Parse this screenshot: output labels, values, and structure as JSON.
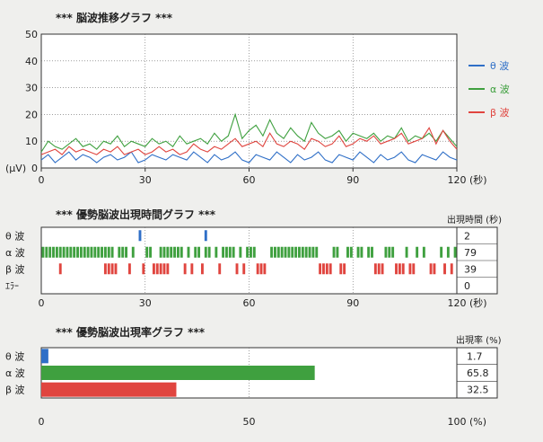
{
  "chart_data": [
    {
      "type": "line",
      "title": "*** 脳波推移グラフ ***",
      "ylabel": "(μV)",
      "xlabel_unit": "(秒)",
      "xlim": [
        0,
        120
      ],
      "ylim": [
        0,
        50
      ],
      "x_ticks": [
        0,
        30,
        60,
        90,
        120
      ],
      "y_ticks": [
        0,
        10,
        20,
        30,
        40,
        50
      ],
      "x_tick_labels": [
        "0",
        "30",
        "60",
        "90",
        "120"
      ],
      "y_tick_labels": [
        "0",
        "10",
        "20",
        "30",
        "40",
        "50"
      ],
      "grid": true,
      "legend_position": "right",
      "x": [
        0,
        2,
        4,
        6,
        8,
        10,
        12,
        14,
        16,
        18,
        20,
        22,
        24,
        26,
        28,
        30,
        32,
        34,
        36,
        38,
        40,
        42,
        44,
        46,
        48,
        50,
        52,
        54,
        56,
        58,
        60,
        62,
        64,
        66,
        68,
        70,
        72,
        74,
        76,
        78,
        80,
        82,
        84,
        86,
        88,
        90,
        92,
        94,
        96,
        98,
        100,
        102,
        104,
        106,
        108,
        110,
        112,
        114,
        116,
        118,
        120
      ],
      "series": [
        {
          "name": "θ 波",
          "color": "#2f6fc7",
          "values": [
            3,
            5,
            2,
            4,
            6,
            3,
            5,
            4,
            2,
            4,
            5,
            3,
            4,
            6,
            2,
            3,
            5,
            4,
            3,
            5,
            4,
            3,
            6,
            4,
            2,
            5,
            3,
            4,
            6,
            3,
            2,
            5,
            4,
            3,
            6,
            4,
            2,
            5,
            3,
            4,
            6,
            3,
            2,
            5,
            4,
            3,
            6,
            4,
            2,
            5,
            3,
            4,
            6,
            3,
            2,
            5,
            4,
            3,
            6,
            4,
            3
          ]
        },
        {
          "name": "α 波",
          "color": "#3fa03f",
          "values": [
            6,
            10,
            8,
            7,
            9,
            11,
            8,
            9,
            7,
            10,
            9,
            12,
            8,
            10,
            9,
            8,
            11,
            9,
            10,
            8,
            12,
            9,
            10,
            11,
            9,
            13,
            10,
            12,
            20,
            11,
            14,
            16,
            12,
            18,
            13,
            11,
            15,
            12,
            10,
            17,
            13,
            11,
            12,
            14,
            10,
            13,
            12,
            11,
            13,
            10,
            12,
            11,
            15,
            10,
            12,
            11,
            13,
            10,
            14,
            11,
            8
          ]
        },
        {
          "name": "β 波",
          "color": "#e0453f",
          "values": [
            5,
            6,
            7,
            5,
            8,
            6,
            7,
            6,
            5,
            7,
            6,
            8,
            5,
            6,
            7,
            5,
            6,
            8,
            6,
            7,
            5,
            6,
            9,
            7,
            6,
            8,
            7,
            9,
            11,
            8,
            9,
            10,
            8,
            13,
            9,
            8,
            10,
            9,
            7,
            11,
            10,
            8,
            9,
            12,
            8,
            9,
            11,
            10,
            12,
            9,
            10,
            11,
            13,
            9,
            10,
            11,
            15,
            9,
            14,
            10,
            7
          ]
        }
      ]
    },
    {
      "type": "bar",
      "title": "*** 優勢脳波出現時間グラフ ***",
      "xlim": [
        0,
        120
      ],
      "x_ticks": [
        0,
        30,
        60,
        90,
        120
      ],
      "x_tick_labels": [
        "0",
        "30",
        "60",
        "90",
        "120"
      ],
      "xlabel_unit": "(秒)",
      "grid": true,
      "count_header": "出現時間 (秒)",
      "rows": [
        {
          "name": "θ 波",
          "color": "#2f6fc7",
          "count": "2",
          "seconds": [
            28,
            47
          ]
        },
        {
          "name": "α 波",
          "color": "#3fa03f",
          "count": "79",
          "seconds": [
            0,
            1,
            2,
            3,
            4,
            5,
            6,
            7,
            8,
            9,
            10,
            11,
            12,
            13,
            14,
            15,
            16,
            17,
            18,
            19,
            20,
            22,
            23,
            24,
            26,
            30,
            31,
            34,
            35,
            36,
            37,
            38,
            39,
            40,
            42,
            44,
            45,
            47,
            48,
            50,
            52,
            53,
            54,
            55,
            57,
            59,
            60,
            61,
            66,
            67,
            68,
            69,
            70,
            71,
            72,
            73,
            74,
            75,
            76,
            77,
            78,
            79,
            84,
            85,
            88,
            89,
            91,
            92,
            94,
            95,
            99,
            100,
            101,
            105,
            108,
            110,
            115,
            117,
            119
          ]
        },
        {
          "name": "β 波",
          "color": "#e0453f",
          "count": "39",
          "seconds": [
            5,
            18,
            19,
            20,
            21,
            25,
            29,
            32,
            33,
            34,
            35,
            36,
            41,
            43,
            46,
            51,
            56,
            58,
            62,
            63,
            64,
            80,
            81,
            82,
            83,
            86,
            87,
            96,
            97,
            98,
            102,
            103,
            104,
            106,
            107,
            112,
            113,
            116,
            118
          ]
        },
        {
          "name": "ｴﾗｰ",
          "color": "#888888",
          "count": "0",
          "seconds": []
        }
      ]
    },
    {
      "type": "bar",
      "orientation": "horizontal",
      "title": "*** 優勢脳波出現率グラフ ***",
      "xlim": [
        0,
        100
      ],
      "x_ticks": [
        0,
        50,
        100
      ],
      "x_tick_labels": [
        "0",
        "50",
        "100"
      ],
      "xlabel_unit": "(%)",
      "grid": true,
      "value_header": "出現率 (%)",
      "categories": [
        "θ 波",
        "α 波",
        "β 波"
      ],
      "values": [
        1.7,
        65.8,
        32.5
      ],
      "value_labels": [
        "1.7",
        "65.8",
        "32.5"
      ],
      "colors": [
        "#2f6fc7",
        "#3fa03f",
        "#e0453f"
      ]
    }
  ]
}
